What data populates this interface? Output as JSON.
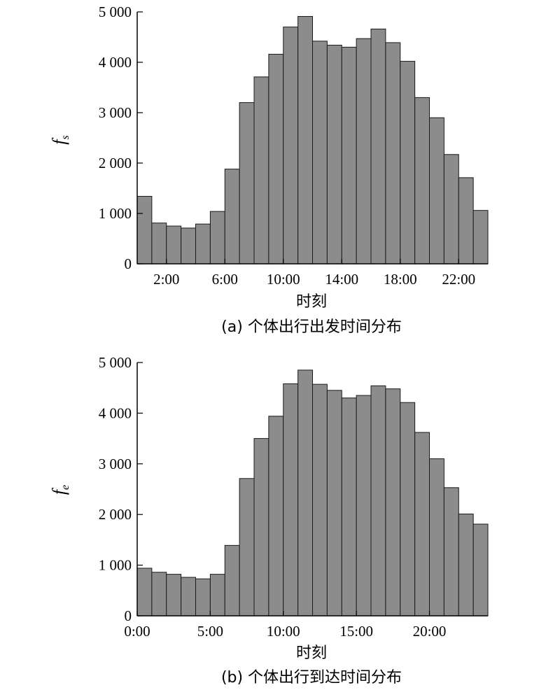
{
  "chart_data": [
    {
      "type": "bar",
      "caption": "(a) 个体出行出发时间分布",
      "xlabel": "时刻",
      "ylabel": {
        "main": "f",
        "sub": "s"
      },
      "ylim": [
        0,
        5000
      ],
      "yticks": [
        0,
        1000,
        2000,
        3000,
        4000,
        5000
      ],
      "ytick_labels": [
        "0",
        "1 000",
        "2 000",
        "3 000",
        "4 000",
        "5 000"
      ],
      "xticks": [
        2,
        6,
        10,
        14,
        18,
        22
      ],
      "xtick_labels": [
        "2:00",
        "6:00",
        "10:00",
        "14:00",
        "18:00",
        "22:00"
      ],
      "bar_color": "#8c8c8c",
      "categories": [
        "0",
        "1",
        "2",
        "3",
        "4",
        "5",
        "6",
        "7",
        "8",
        "9",
        "10",
        "11",
        "12",
        "13",
        "14",
        "15",
        "16",
        "17",
        "18",
        "19",
        "20",
        "21",
        "22",
        "23"
      ],
      "values": [
        1340,
        810,
        750,
        710,
        790,
        1040,
        1880,
        3200,
        3710,
        4160,
        4700,
        4910,
        4420,
        4340,
        4300,
        4470,
        4660,
        4390,
        4020,
        3300,
        2900,
        2170,
        1710,
        1060
      ]
    },
    {
      "type": "bar",
      "caption": "(b) 个体出行到达时间分布",
      "xlabel": "时刻",
      "ylabel": {
        "main": "f",
        "sub": "e"
      },
      "ylim": [
        0,
        5000
      ],
      "yticks": [
        0,
        1000,
        2000,
        3000,
        4000,
        5000
      ],
      "ytick_labels": [
        "0",
        "1 000",
        "2 000",
        "3 000",
        "4 000",
        "5 000"
      ],
      "xticks": [
        0,
        5,
        10,
        15,
        20
      ],
      "xtick_labels": [
        "0:00",
        "5:00",
        "10:00",
        "15:00",
        "20:00"
      ],
      "bar_color": "#8c8c8c",
      "categories": [
        "0",
        "1",
        "2",
        "3",
        "4",
        "5",
        "6",
        "7",
        "8",
        "9",
        "10",
        "11",
        "12",
        "13",
        "14",
        "15",
        "16",
        "17",
        "18",
        "19",
        "20",
        "21",
        "22",
        "23"
      ],
      "values": [
        940,
        860,
        820,
        760,
        730,
        820,
        1390,
        2710,
        3500,
        3940,
        4580,
        4850,
        4570,
        4450,
        4300,
        4350,
        4540,
        4480,
        4210,
        3620,
        3100,
        2530,
        2010,
        1810
      ]
    }
  ]
}
